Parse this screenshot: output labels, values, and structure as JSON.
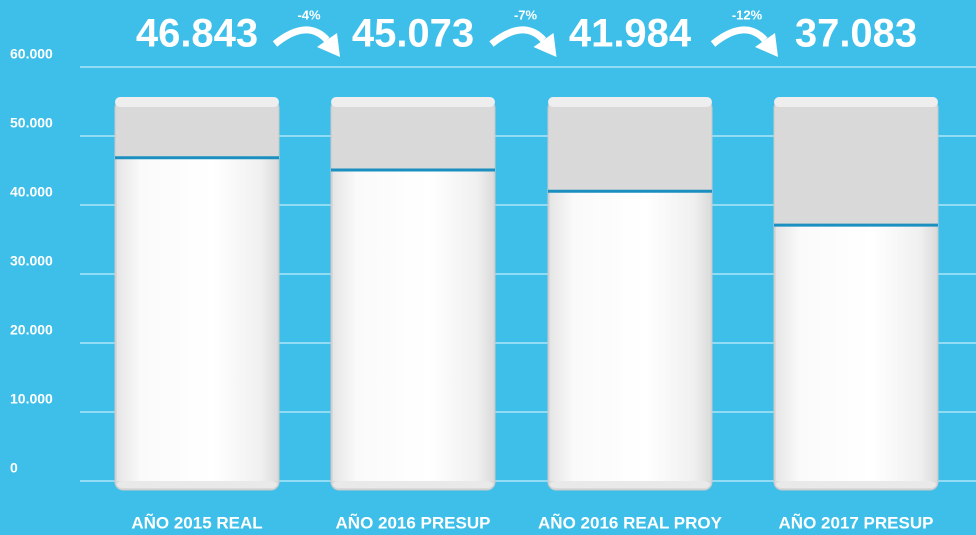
{
  "chart_data": {
    "type": "bar",
    "categories": [
      "AÑO 2015 REAL",
      "AÑO 2016 PRESUP",
      "AÑO 2016 REAL PROY",
      "AÑO 2017 PRESUP"
    ],
    "values": [
      46843,
      45073,
      41984,
      37083
    ],
    "value_labels": [
      "46.843",
      "45.073",
      "41.984",
      "37.083"
    ],
    "annotations": [
      "-4%",
      "-7%",
      "-12%"
    ],
    "color": "#ffffff",
    "ylim": [
      0,
      60000
    ],
    "yticks": [
      0,
      {
        "value": 10000,
        "label": "10.000"
      },
      {
        "value": 20000,
        "label": "20.000"
      },
      {
        "value": 30000,
        "label": "30.000"
      },
      {
        "value": 40000,
        "label": "40.000"
      },
      {
        "value": 50000,
        "label": "50.000"
      },
      {
        "value": 60000,
        "label": "60.000"
      }
    ],
    "grid": true
  }
}
